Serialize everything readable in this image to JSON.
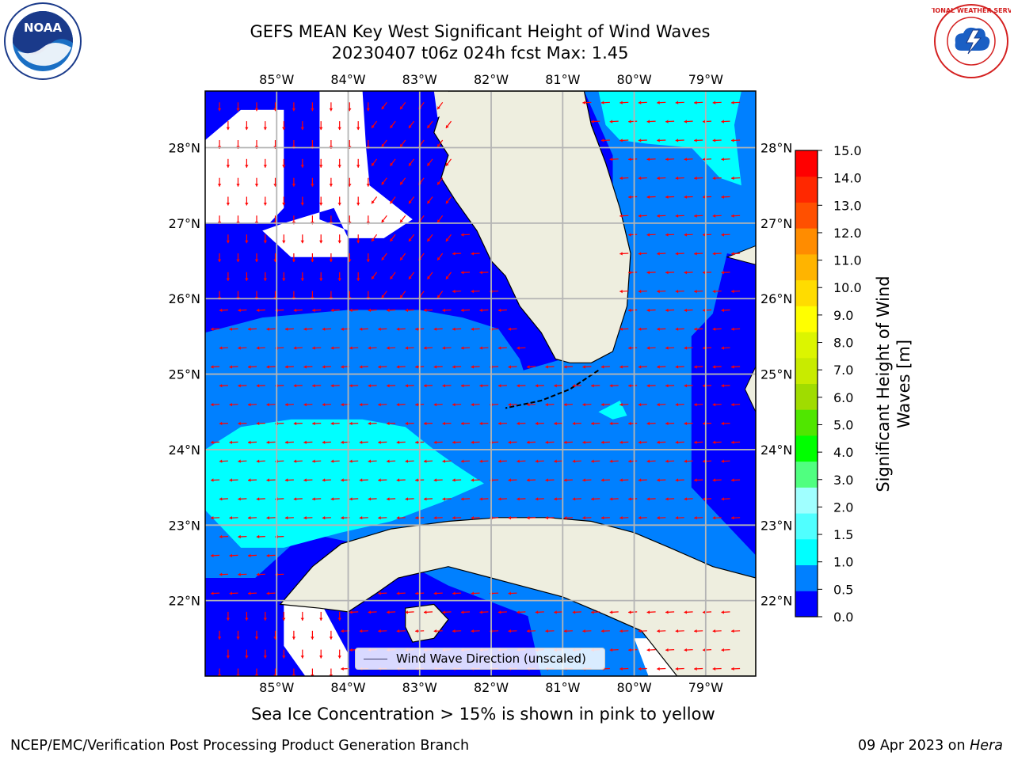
{
  "title": {
    "line1": "GEFS MEAN Key West Significant Height of Wind Waves",
    "line2": "20230407 t06z 024h fcst   Max: 1.45"
  },
  "map": {
    "lon_ticks": [
      "85°W",
      "84°W",
      "83°W",
      "82°W",
      "81°W",
      "80°W",
      "79°W"
    ],
    "lat_ticks": [
      "28°N",
      "27°N",
      "26°N",
      "25°N",
      "24°N",
      "23°N",
      "22°N"
    ],
    "lon_values": [
      -85,
      -84,
      -83,
      -82,
      -81,
      -80,
      -79
    ],
    "lat_values": [
      28,
      27,
      26,
      25,
      24,
      23,
      22
    ],
    "extent": {
      "lon_min": -86,
      "lon_max": -78.3,
      "lat_min": 21.0,
      "lat_max": 28.75
    },
    "land_color": "#eeeedf",
    "ocean_levels": {
      "0.0-0.5": "#0000ff",
      "0.5-1.0": "#0080ff",
      "1.0-1.5": "#00ffff"
    },
    "arrow_color": "#ff0000",
    "arrow_direction": "westward in south and east, southward in northwest"
  },
  "colorbar": {
    "title": "Significant Height of Wind Waves [m]",
    "ticks": [
      "0.0",
      "0.5",
      "1.0",
      "1.5",
      "2.0",
      "3.0",
      "4.0",
      "5.0",
      "6.0",
      "7.0",
      "8.0",
      "9.0",
      "10.0",
      "11.0",
      "12.0",
      "13.0",
      "14.0",
      "15.0"
    ],
    "colors": [
      "#0000ff",
      "#0080ff",
      "#00ffff",
      "#50ffff",
      "#a0ffff",
      "#50ff80",
      "#00ff00",
      "#50e600",
      "#a0dc00",
      "#c8eb00",
      "#dcf500",
      "#ffff00",
      "#ffdc00",
      "#ffb400",
      "#ff8c00",
      "#ff5000",
      "#ff2800",
      "#ff0000"
    ]
  },
  "legend": {
    "label": "Wind Wave Direction (unscaled)"
  },
  "subtitle": "Sea Ice Concentration > 15% is shown in pink to yellow",
  "footer": {
    "left": "NCEP/EMC/Verification Post Processing Product Generation Branch",
    "right_date": "09 Apr 2023 on ",
    "right_host": "Hera"
  },
  "logos": {
    "left": "NOAA",
    "right": "NATIONAL WEATHER SERVICE"
  }
}
